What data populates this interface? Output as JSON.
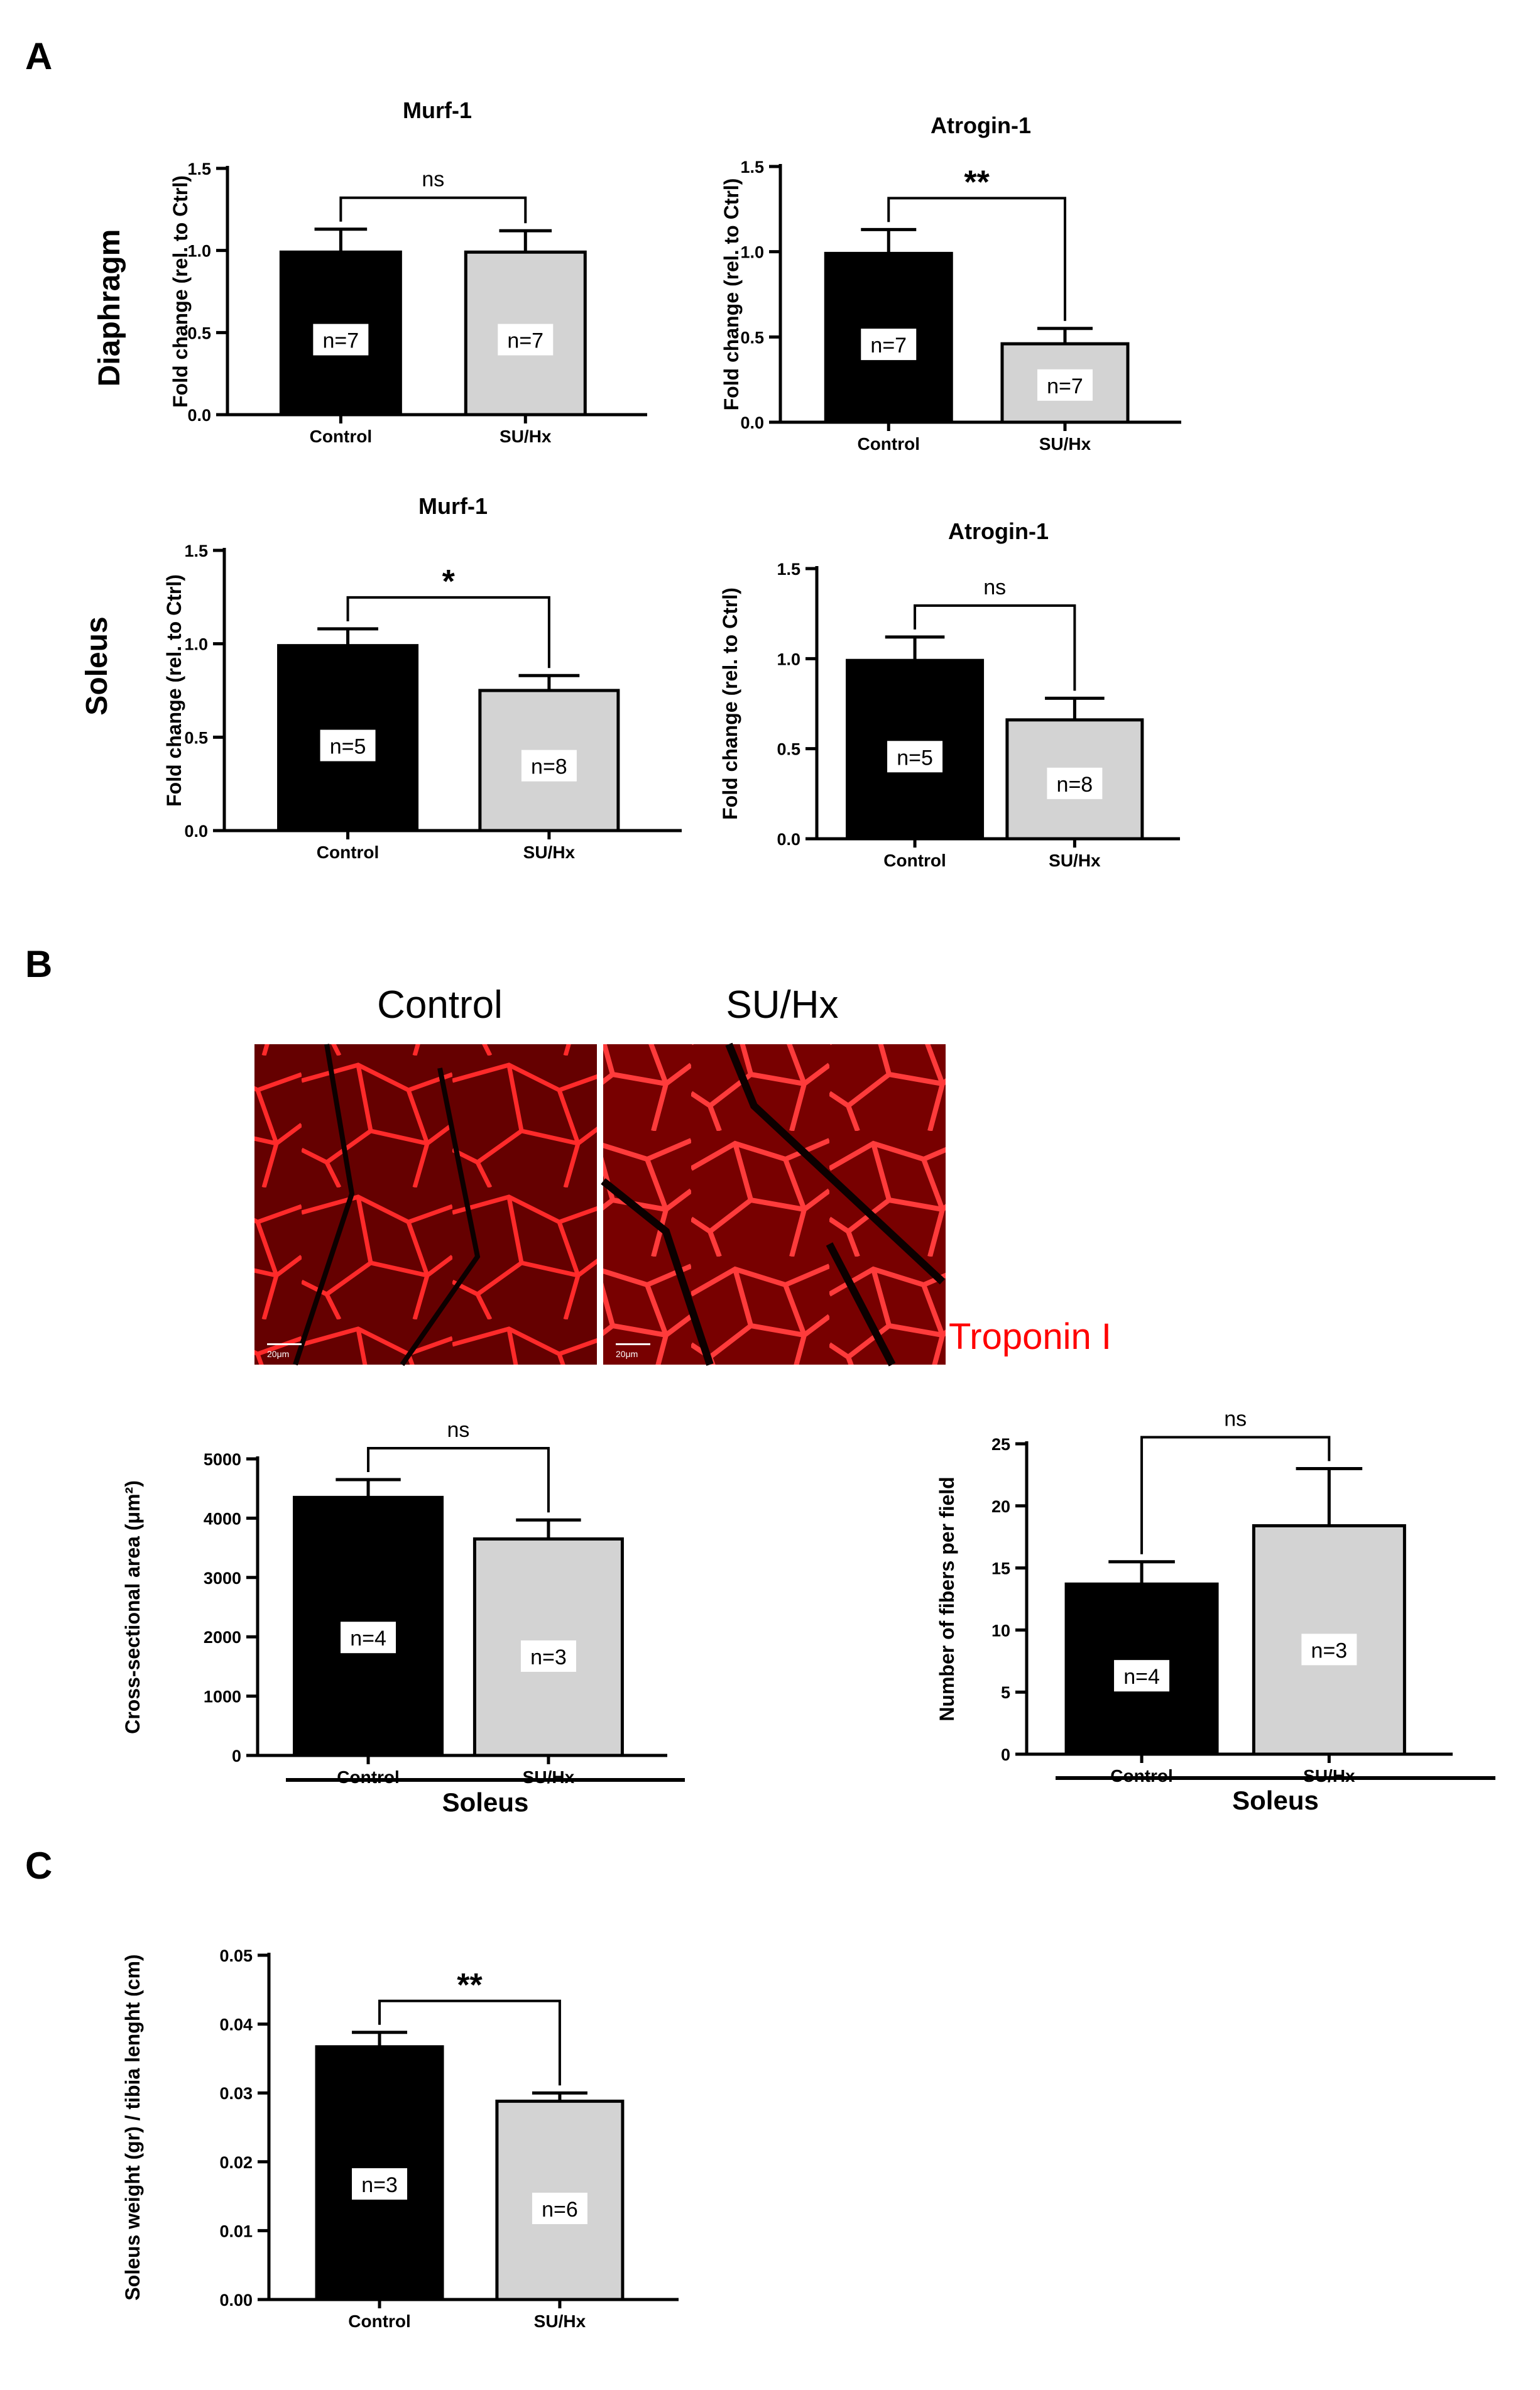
{
  "panel_labels": {
    "A": "A",
    "B": "B",
    "C": "C"
  },
  "row_labels": {
    "diaphragm": "Diaphragm",
    "soleus": "Soleus"
  },
  "micrographs": {
    "control_title": "Control",
    "suhx_title": "SU/Hx",
    "stain_label": "Troponin I",
    "scale_bar_label": "20μm",
    "stain_color": "#ff0000"
  },
  "colors": {
    "control": "#000000",
    "suhx": "#d3d3d3"
  },
  "chart_data": [
    {
      "id": "dia-murf",
      "type": "bar",
      "title": "Murf-1",
      "ylabel": "Fold change  (rel. to Ctrl)",
      "categories": [
        "Control",
        "SU/Hx"
      ],
      "values": [
        0.99,
        0.99
      ],
      "errors": [
        0.14,
        0.13
      ],
      "n_labels": [
        "n=7",
        "n=7"
      ],
      "ylim": [
        0,
        1.5
      ],
      "yticks": [
        0.0,
        0.5,
        1.0,
        1.5
      ],
      "tick_labels": [
        "0.0",
        "0.5",
        "1.0",
        "1.5"
      ],
      "significance": "ns",
      "group_label": ""
    },
    {
      "id": "dia-atrogin",
      "type": "bar",
      "title": "Atrogin-1",
      "ylabel": "Fold change  (rel. to Ctrl)",
      "categories": [
        "Control",
        "SU/Hx"
      ],
      "values": [
        0.99,
        0.46
      ],
      "errors": [
        0.14,
        0.09
      ],
      "n_labels": [
        "n=7",
        "n=7"
      ],
      "ylim": [
        0,
        1.5
      ],
      "yticks": [
        0.0,
        0.5,
        1.0,
        1.5
      ],
      "tick_labels": [
        "0.0",
        "0.5",
        "1.0",
        "1.5"
      ],
      "significance": "**",
      "group_label": ""
    },
    {
      "id": "sol-murf",
      "type": "bar",
      "title": "Murf-1",
      "ylabel": "Fold change  (rel. to Ctrl)",
      "categories": [
        "Control",
        "SU/Hx"
      ],
      "values": [
        0.99,
        0.75
      ],
      "errors": [
        0.09,
        0.08
      ],
      "n_labels": [
        "n=5",
        "n=8"
      ],
      "ylim": [
        0,
        1.5
      ],
      "yticks": [
        0.0,
        0.5,
        1.0,
        1.5
      ],
      "tick_labels": [
        "0.0",
        "0.5",
        "1.0",
        "1.5"
      ],
      "significance": "*",
      "group_label": ""
    },
    {
      "id": "sol-atrogin",
      "type": "bar",
      "title": "Atrogin-1",
      "ylabel": "Fold change  (rel. to Ctrl)",
      "categories": [
        "Control",
        "SU/Hx"
      ],
      "values": [
        0.99,
        0.66
      ],
      "errors": [
        0.13,
        0.12
      ],
      "n_labels": [
        "n=5",
        "n=8"
      ],
      "ylim": [
        0,
        1.5
      ],
      "yticks": [
        0.0,
        0.5,
        1.0,
        1.5
      ],
      "tick_labels": [
        "0.0",
        "0.5",
        "1.0",
        "1.5"
      ],
      "significance": "ns",
      "group_label": ""
    },
    {
      "id": "csa",
      "type": "bar",
      "title": "",
      "ylabel": "Cross-sectional area (μm²)",
      "categories": [
        "Control",
        "SU/Hx"
      ],
      "values": [
        4350,
        3650
      ],
      "errors": [
        300,
        320
      ],
      "n_labels": [
        "n=4",
        "n=3"
      ],
      "ylim": [
        0,
        5000
      ],
      "yticks": [
        0,
        1000,
        2000,
        3000,
        4000,
        5000
      ],
      "tick_labels": [
        "0",
        "1000",
        "2000",
        "3000",
        "4000",
        "5000"
      ],
      "significance": "ns",
      "group_label": "Soleus"
    },
    {
      "id": "fibers",
      "type": "bar",
      "title": "",
      "ylabel": "Number of fibers per field",
      "categories": [
        "Control",
        "SU/Hx"
      ],
      "values": [
        13.7,
        18.4
      ],
      "errors": [
        1.8,
        4.6
      ],
      "n_labels": [
        "n=4",
        "n=3"
      ],
      "ylim": [
        0,
        25
      ],
      "yticks": [
        0,
        5,
        10,
        15,
        20,
        25
      ],
      "tick_labels": [
        "0",
        "5",
        "10",
        "15",
        "20",
        "25"
      ],
      "significance": "ns",
      "group_label": "Soleus"
    },
    {
      "id": "weight",
      "type": "bar",
      "title": "",
      "ylabel": "Soleus weight (gr) / tibia lenght (cm)",
      "categories": [
        "Control",
        "SU/Hx"
      ],
      "values": [
        0.0367,
        0.0288
      ],
      "errors": [
        0.0021,
        0.0012
      ],
      "n_labels": [
        "n=3",
        "n=6"
      ],
      "ylim": [
        0,
        0.05
      ],
      "yticks": [
        0,
        0.01,
        0.02,
        0.03,
        0.04,
        0.05
      ],
      "tick_labels": [
        "0.00",
        "0.01",
        "0.02",
        "0.03",
        "0.04",
        "0.05"
      ],
      "significance": "**",
      "group_label": ""
    }
  ]
}
